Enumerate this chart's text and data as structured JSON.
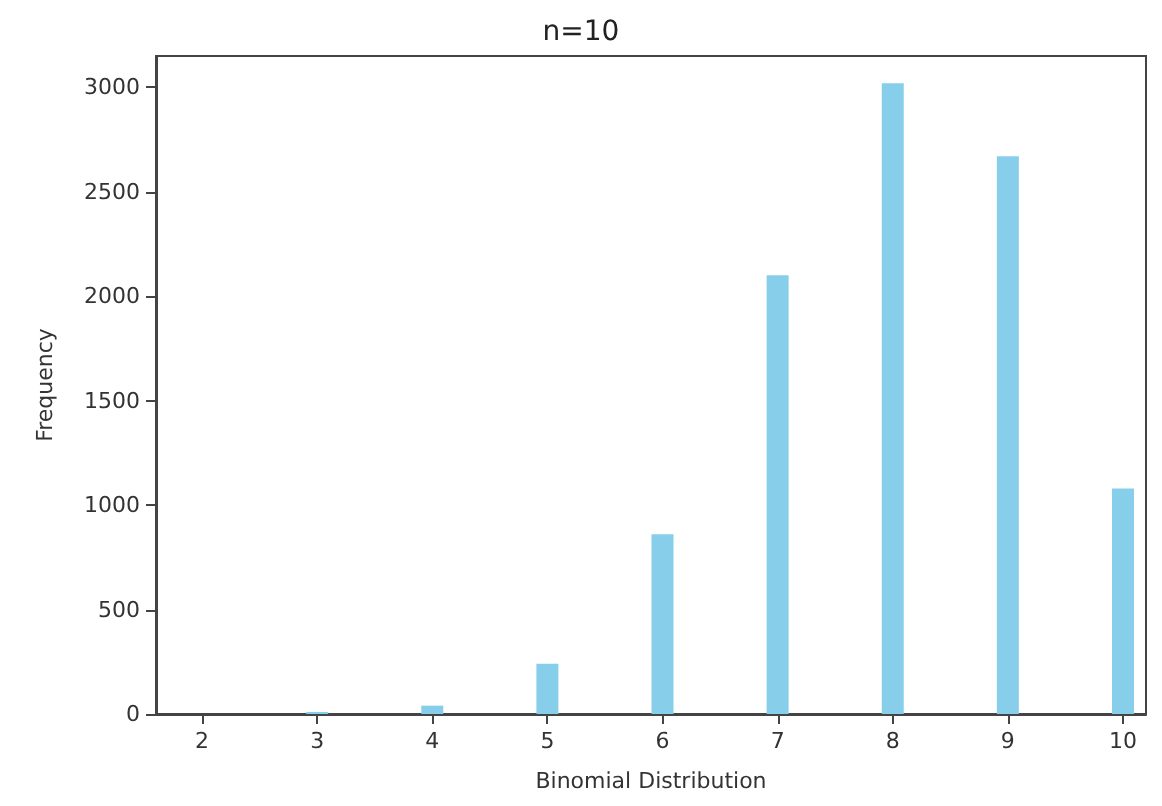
{
  "chart_data": {
    "type": "bar",
    "title": "n=10",
    "xlabel": "Binomial Distribution",
    "ylabel": "Frequency",
    "x": [
      2,
      3,
      4,
      5,
      6,
      7,
      8,
      9,
      10
    ],
    "values": [
      0,
      10,
      40,
      240,
      860,
      2100,
      3020,
      2670,
      1080
    ],
    "color": "#87ceeb",
    "xlim": [
      1.6,
      10.2
    ],
    "xticks": [
      2,
      3,
      4,
      5,
      6,
      7,
      8,
      9,
      10
    ],
    "ylim": [
      0,
      3150
    ],
    "yticks": [
      0,
      500,
      1000,
      1500,
      2000,
      2500,
      3000
    ],
    "grid": false
  }
}
